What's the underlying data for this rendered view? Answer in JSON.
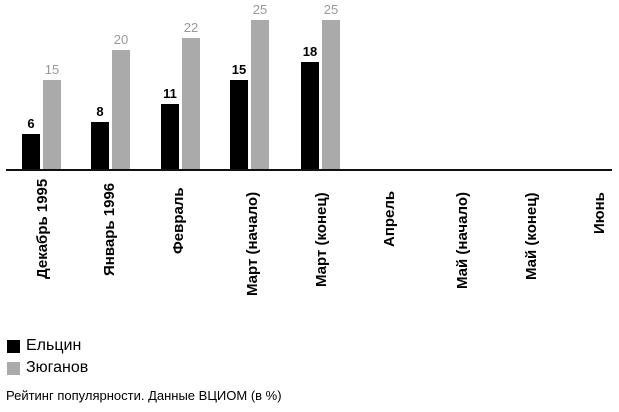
{
  "chart_data": {
    "type": "bar",
    "title": "",
    "xlabel": "",
    "ylabel": "",
    "ylim": [
      0,
      25
    ],
    "grid": false,
    "legend_position": "bottom-left",
    "categories": [
      "Декабрь 1995",
      "Январь 1996",
      "Февраль",
      "Март (начало)",
      "Март (конец)",
      "Апрель",
      "Май (начало)",
      "Май (конец)",
      "Июнь"
    ],
    "series": [
      {
        "name": "Ельцин",
        "color": "#000000",
        "values": [
          6,
          8,
          11,
          15,
          18,
          null,
          null,
          null,
          null
        ]
      },
      {
        "name": "Зюганов",
        "color": "#aaaaaa",
        "values": [
          15,
          20,
          22,
          25,
          25,
          null,
          null,
          null,
          null
        ]
      }
    ],
    "caption": "Рейтинг популярности. Данные ВЦИОМ (в %)"
  },
  "legend": {
    "items": [
      {
        "label": "Ельцин",
        "color": "#000000"
      },
      {
        "label": "Зюганов",
        "color": "#aaaaaa"
      }
    ]
  },
  "footer": {
    "caption": "Рейтинг популярности. Данные ВЦИОМ (в %)"
  }
}
